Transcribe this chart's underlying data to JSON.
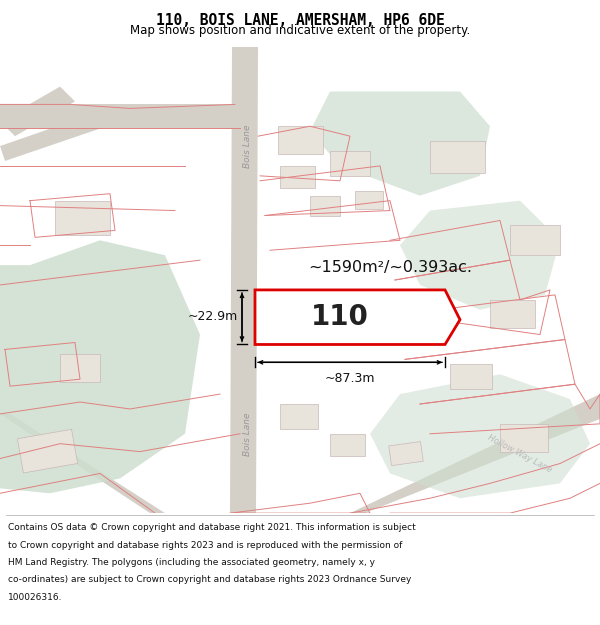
{
  "title": "110, BOIS LANE, AMERSHAM, HP6 6DE",
  "subtitle": "Map shows position and indicative extent of the property.",
  "footer_lines": [
    "Contains OS data © Crown copyright and database right 2021. This information is subject",
    "to Crown copyright and database rights 2023 and is reproduced with the permission of",
    "HM Land Registry. The polygons (including the associated geometry, namely x, y",
    "co-ordinates) are subject to Crown copyright and database rights 2023 Ordnance Survey",
    "100026316."
  ],
  "area_text": "~1590m²/~0.393ac.",
  "plot_number": "110",
  "dim_width": "~87.3m",
  "dim_height": "~22.9m",
  "map_bg": "#f7f5f2",
  "road_color": "#d4d0c8",
  "plot_edge_color": "#dd0000",
  "road_label_bois": "Bois Lane",
  "road_label_hollow": "Hollow Way Lane",
  "green_fill": "#cddece",
  "pink_line": "#e08080",
  "building_fill": "#e8e4dc",
  "building_edge": "#c8b8b8"
}
